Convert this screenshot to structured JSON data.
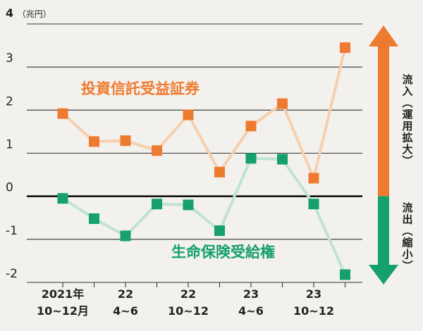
{
  "chart_data": {
    "type": "line",
    "ylabel": "4",
    "yunit": "（兆円）",
    "ylim": [
      -2,
      4
    ],
    "yticks": [
      -2,
      -1,
      0,
      1,
      2,
      3
    ],
    "categories": [
      "2021Q4",
      "2022Q1",
      "2022Q2",
      "2022Q3",
      "2022Q4",
      "2023Q1",
      "2023Q2",
      "2023Q3",
      "2023Q4",
      "2024Q1"
    ],
    "x_tick_labels": [
      {
        "index": 0,
        "line1": "2021年",
        "line2": "10~12月"
      },
      {
        "index": 2,
        "line1": "22",
        "line2": "4~6"
      },
      {
        "index": 4,
        "line1": "22",
        "line2": "10~12"
      },
      {
        "index": 6,
        "line1": "23",
        "line2": "4~6"
      },
      {
        "index": 8,
        "line1": "23",
        "line2": "10~12"
      }
    ],
    "series": [
      {
        "name": "投資信託受益証券",
        "color": "#ee7a2f",
        "line_color": "#f6cfae",
        "values": [
          1.92,
          1.27,
          1.29,
          1.06,
          1.89,
          0.56,
          1.63,
          2.15,
          0.42,
          3.45
        ]
      },
      {
        "name": "生命保険受給権",
        "color": "#16a06b",
        "line_color": "#bfe3d1",
        "values": [
          -0.05,
          -0.52,
          -0.92,
          -0.18,
          -0.2,
          -0.8,
          0.88,
          0.86,
          -0.18,
          -1.82
        ]
      }
    ],
    "side_labels": {
      "inflow": "流入（運用拡大）",
      "outflow": "流出（縮小）",
      "inflow_color": "#ee7a2f",
      "outflow_color": "#16a06b"
    }
  }
}
